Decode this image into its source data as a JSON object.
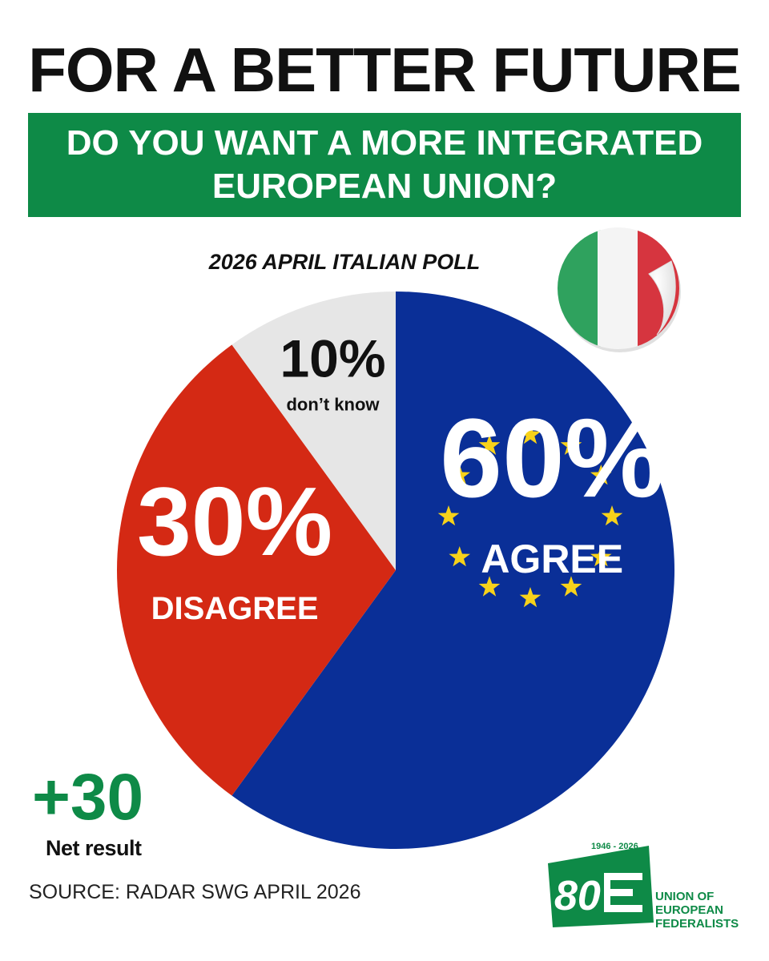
{
  "header": {
    "title": "FOR A BETTER FUTURE",
    "question": "DO YOU WANT A MORE INTEGRATED EUROPEAN UNION?",
    "subtitle": "2026 APRIL ITALIAN POLL"
  },
  "chart_data": {
    "type": "pie",
    "start": "top, clockwise",
    "slices": [
      {
        "label": "AGREE",
        "value": 60,
        "value_text": "60%",
        "color": "#0a2f97"
      },
      {
        "label": "DISAGREE",
        "value": 30,
        "value_text": "30%",
        "color": "#d42914"
      },
      {
        "label": "don’t know",
        "value": 10,
        "value_text": "10%",
        "color": "#e6e6e6"
      }
    ]
  },
  "net": {
    "value": "+30",
    "label": "Net result"
  },
  "source": "SOURCE: RADAR SWG APRIL 2026",
  "logo": {
    "number": "80",
    "years": "1946 - 2026",
    "org_lines": [
      "UNION OF",
      "EUROPEAN",
      "FEDERALISTS"
    ]
  },
  "colors": {
    "brand_green": "#0e8a47",
    "eu_star": "#f7d21a",
    "flag_green": "#2fa25e",
    "flag_red": "#d6353f"
  },
  "icons": [
    "eu-stars-icon",
    "italy-flag-sticker-icon"
  ]
}
